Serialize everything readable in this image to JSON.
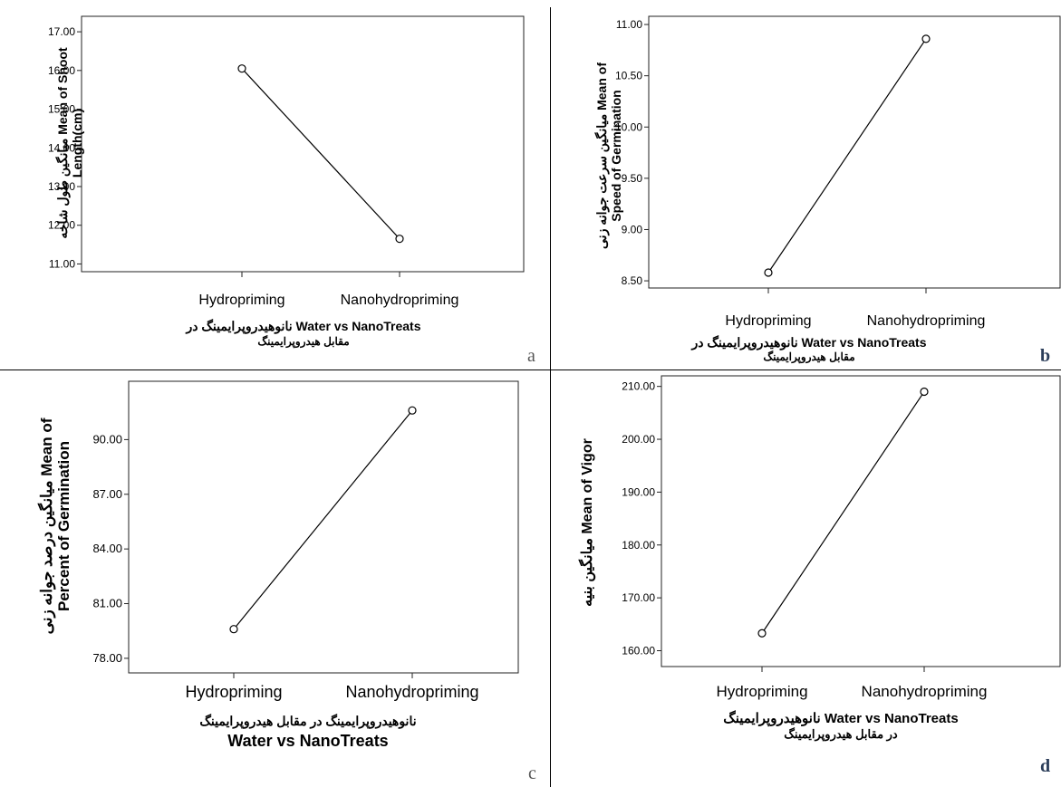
{
  "chart_data": [
    {
      "type": "line",
      "panel_label": "a",
      "categories": [
        "Hydropriming",
        "Nanohydropriming"
      ],
      "values": [
        16.05,
        11.65
      ],
      "ylabel_lines": [
        "میانگین طول شاخه Mean of Shoot",
        "Length(cm)"
      ],
      "xlabel_lines": [
        "نانوهیدروپرایمینگ در Water vs NanoTreats",
        "مقابل هیدروپرایمینگ"
      ],
      "ylim": [
        10.8,
        17.4
      ],
      "yticks": [
        11.0,
        12.0,
        13.0,
        14.0,
        15.0,
        16.0,
        17.0
      ],
      "ytick_labels": [
        "11.00",
        "12.00",
        "13.00",
        "14.00",
        "15.00",
        "16.00",
        "17.00"
      ],
      "grid": false,
      "marker": "open-circle"
    },
    {
      "type": "line",
      "panel_label": "b",
      "categories": [
        "Hydropriming",
        "Nanohydropriming"
      ],
      "values": [
        8.58,
        10.86
      ],
      "ylabel_lines": [
        "میانگین سرعت جوانه زنی Mean of",
        "Speed of Germination"
      ],
      "xlabel_lines": [
        "نانوهیدروپرایمینگ در Water vs NanoTreats",
        "مقابل هیدروپرایمینگ"
      ],
      "ylim": [
        8.43,
        11.08
      ],
      "yticks": [
        8.5,
        9.0,
        9.5,
        10.0,
        10.5,
        11.0
      ],
      "ytick_labels": [
        "8.50",
        "9.00",
        "9.50",
        "10.00",
        "10.50",
        "11.00"
      ],
      "grid": false,
      "marker": "open-circle"
    },
    {
      "type": "line",
      "panel_label": "c",
      "categories": [
        "Hydropriming",
        "Nanohydropriming"
      ],
      "values": [
        79.6,
        91.6
      ],
      "ylabel_lines": [
        "میانگین درصد جوانه زنی Mean of",
        "Percent of Germination"
      ],
      "xlabel_lines": [
        "نانوهیدروپرایمینگ در مقابل هیدروپرایمینگ",
        "Water vs NanoTreats"
      ],
      "ylim": [
        77.2,
        93.2
      ],
      "yticks": [
        78.0,
        81.0,
        84.0,
        87.0,
        90.0
      ],
      "ytick_labels": [
        "78.00",
        "81.00",
        "84.00",
        "87.00",
        "90.00"
      ],
      "grid": false,
      "marker": "open-circle"
    },
    {
      "type": "line",
      "panel_label": "d",
      "categories": [
        "Hydropriming",
        "Nanohydropriming"
      ],
      "values": [
        163.3,
        209.0
      ],
      "ylabel_lines": [
        "میانگین بنیه Mean of Vigor"
      ],
      "xlabel_lines": [
        "نانوهیدروپرایمینگ Water vs NanoTreats",
        "در مقابل هیدروپرایمینگ"
      ],
      "ylim": [
        157.0,
        212.0
      ],
      "yticks": [
        160.0,
        170.0,
        180.0,
        190.0,
        200.0,
        210.0
      ],
      "ytick_labels": [
        "160.00",
        "170.00",
        "180.00",
        "190.00",
        "200.00",
        "210.00"
      ],
      "grid": false,
      "marker": "open-circle"
    }
  ]
}
